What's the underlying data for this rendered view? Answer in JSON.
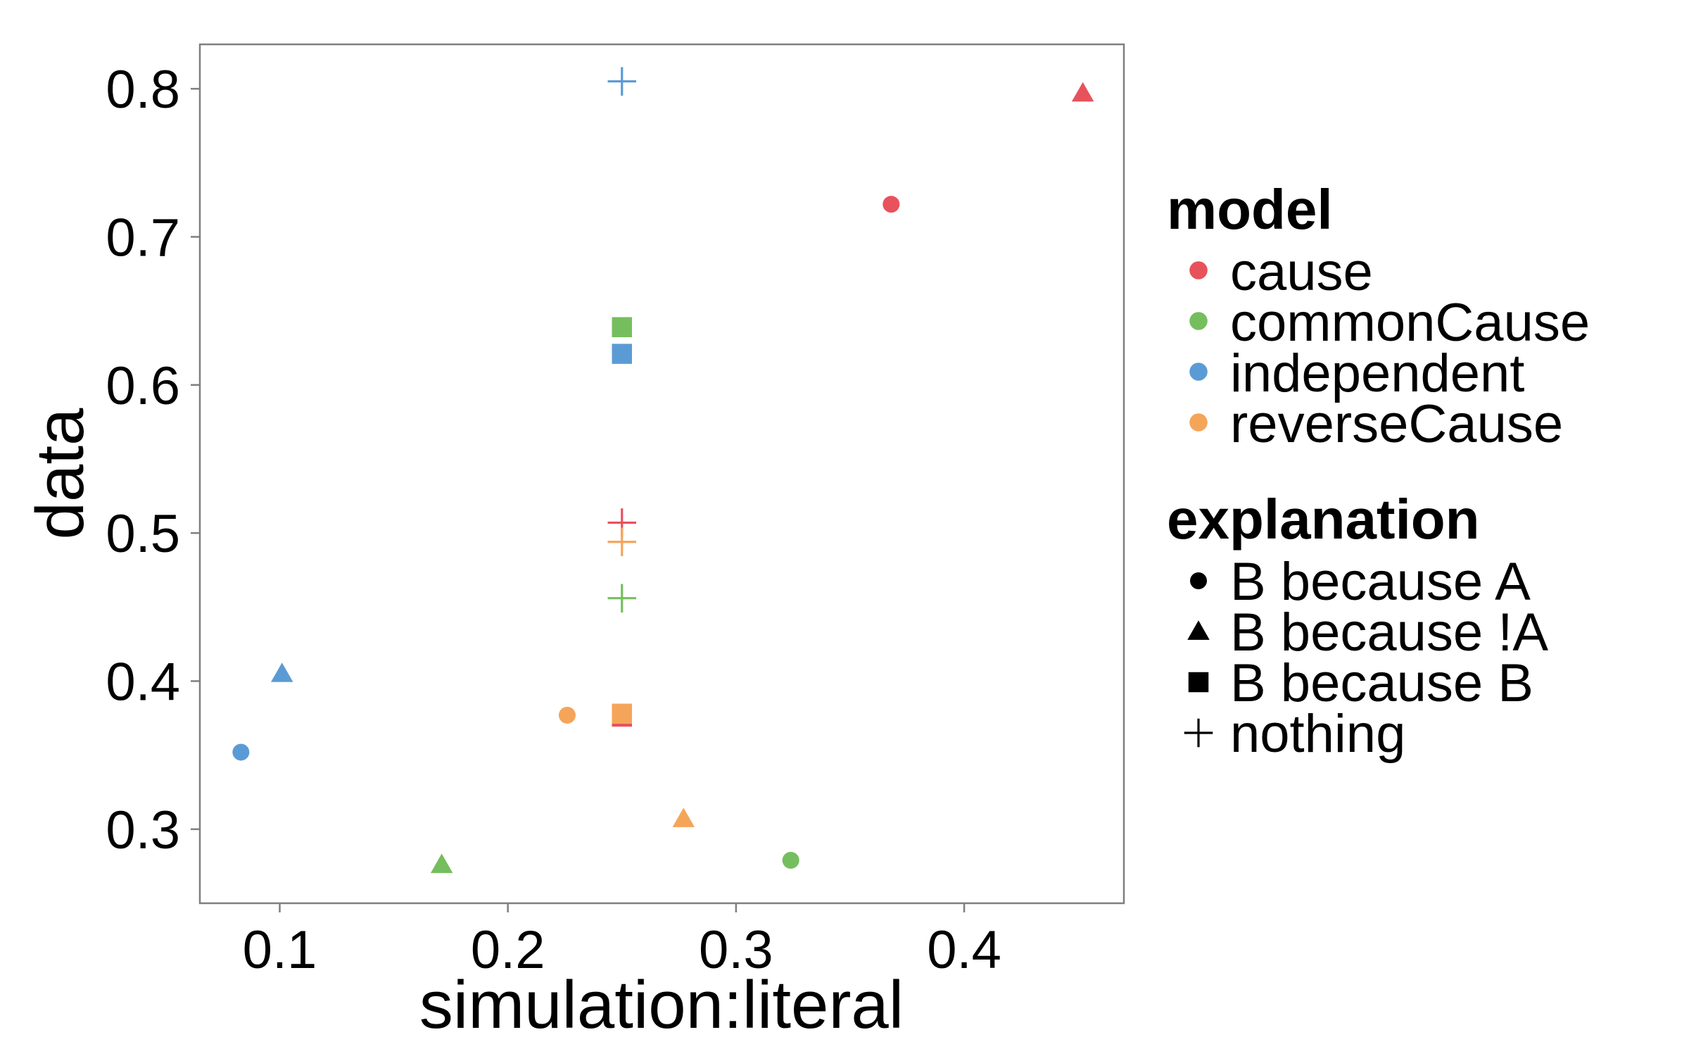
{
  "chart_data": {
    "type": "scatter",
    "xlabel": "simulation:literal",
    "ylabel": "data",
    "xlim": [
      0.065,
      0.47
    ],
    "ylim": [
      0.25,
      0.83
    ],
    "x_ticks": [
      0.1,
      0.2,
      0.3,
      0.4
    ],
    "x_tick_labels": [
      "0.1",
      "0.2",
      "0.3",
      "0.4"
    ],
    "y_ticks": [
      0.3,
      0.4,
      0.5,
      0.6,
      0.7,
      0.8
    ],
    "y_tick_labels": [
      "0.3",
      "0.4",
      "0.5",
      "0.6",
      "0.7",
      "0.8"
    ],
    "grid": false,
    "legend_position": "right",
    "colors": {
      "cause": "#E8525C",
      "commonCause": "#75BE5E",
      "independent": "#5B9BD5",
      "reverseCause": "#F5A55A"
    },
    "legend": {
      "color_title": "model",
      "color_entries": [
        "cause",
        "commonCause",
        "independent",
        "reverseCause"
      ],
      "shape_title": "explanation",
      "shape_entries": [
        "B because A",
        "B because !A",
        "B because B",
        "nothing"
      ],
      "shape_symbols": [
        "circle",
        "triangle",
        "square",
        "plus"
      ]
    },
    "points": [
      {
        "x": 0.368,
        "y": 0.722,
        "model": "cause",
        "explanation": "B because A"
      },
      {
        "x": 0.452,
        "y": 0.797,
        "model": "cause",
        "explanation": "B because !A"
      },
      {
        "x": 0.25,
        "y": 0.376,
        "model": "cause",
        "explanation": "B because B"
      },
      {
        "x": 0.25,
        "y": 0.507,
        "model": "cause",
        "explanation": "nothing"
      },
      {
        "x": 0.324,
        "y": 0.279,
        "model": "commonCause",
        "explanation": "B because A"
      },
      {
        "x": 0.171,
        "y": 0.276,
        "model": "commonCause",
        "explanation": "B because !A"
      },
      {
        "x": 0.25,
        "y": 0.639,
        "model": "commonCause",
        "explanation": "B because B"
      },
      {
        "x": 0.25,
        "y": 0.456,
        "model": "commonCause",
        "explanation": "nothing"
      },
      {
        "x": 0.083,
        "y": 0.352,
        "model": "independent",
        "explanation": "B because A"
      },
      {
        "x": 0.101,
        "y": 0.405,
        "model": "independent",
        "explanation": "B because !A"
      },
      {
        "x": 0.25,
        "y": 0.621,
        "model": "independent",
        "explanation": "B because B"
      },
      {
        "x": 0.25,
        "y": 0.805,
        "model": "independent",
        "explanation": "nothing"
      },
      {
        "x": 0.226,
        "y": 0.377,
        "model": "reverseCause",
        "explanation": "B because A"
      },
      {
        "x": 0.277,
        "y": 0.307,
        "model": "reverseCause",
        "explanation": "B because !A"
      },
      {
        "x": 0.25,
        "y": 0.378,
        "model": "reverseCause",
        "explanation": "B because B"
      },
      {
        "x": 0.25,
        "y": 0.494,
        "model": "reverseCause",
        "explanation": "nothing"
      }
    ]
  }
}
